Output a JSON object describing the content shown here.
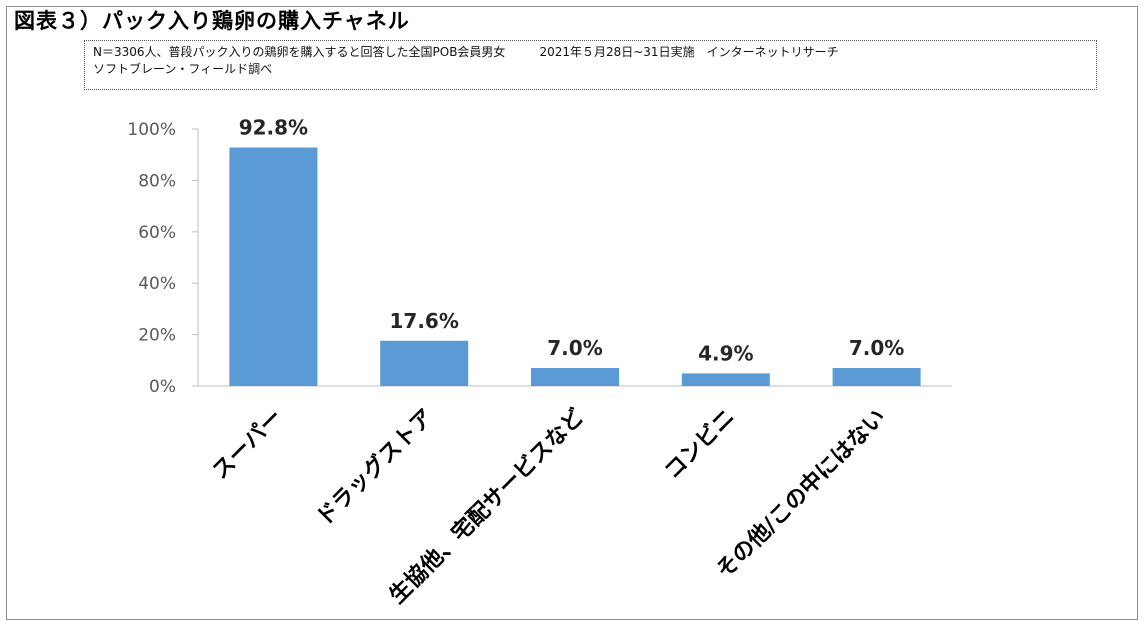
{
  "figure": {
    "title": "図表３）パック入り鶏卵の購入チャネル",
    "note_line1": "N＝3306人、普段パック入りの鶏卵を購入すると回答した全国POB会員男女",
    "note_date": "2021年５月28日~31日実施　インターネットリサーチ",
    "note_line2": "ソフトブレーン・フィールド調べ"
  },
  "chart_data": {
    "type": "bar",
    "categories": [
      "スーパー",
      "ドラッグストア",
      "生協他、宅配サービスなど",
      "コンビニ",
      "その他/この中にはない"
    ],
    "values": [
      92.8,
      17.6,
      7.0,
      4.9,
      7.0
    ],
    "data_labels": [
      "92.8%",
      "17.6%",
      "7.0%",
      "4.9%",
      "7.0%"
    ],
    "ylim": [
      0,
      100
    ],
    "yticks": [
      0,
      20,
      40,
      60,
      80,
      100
    ],
    "ytick_labels": [
      "0%",
      "20%",
      "40%",
      "60%",
      "80%",
      "100%"
    ],
    "bar_color": "#5B9BD5",
    "grid": false,
    "legend": "none"
  }
}
